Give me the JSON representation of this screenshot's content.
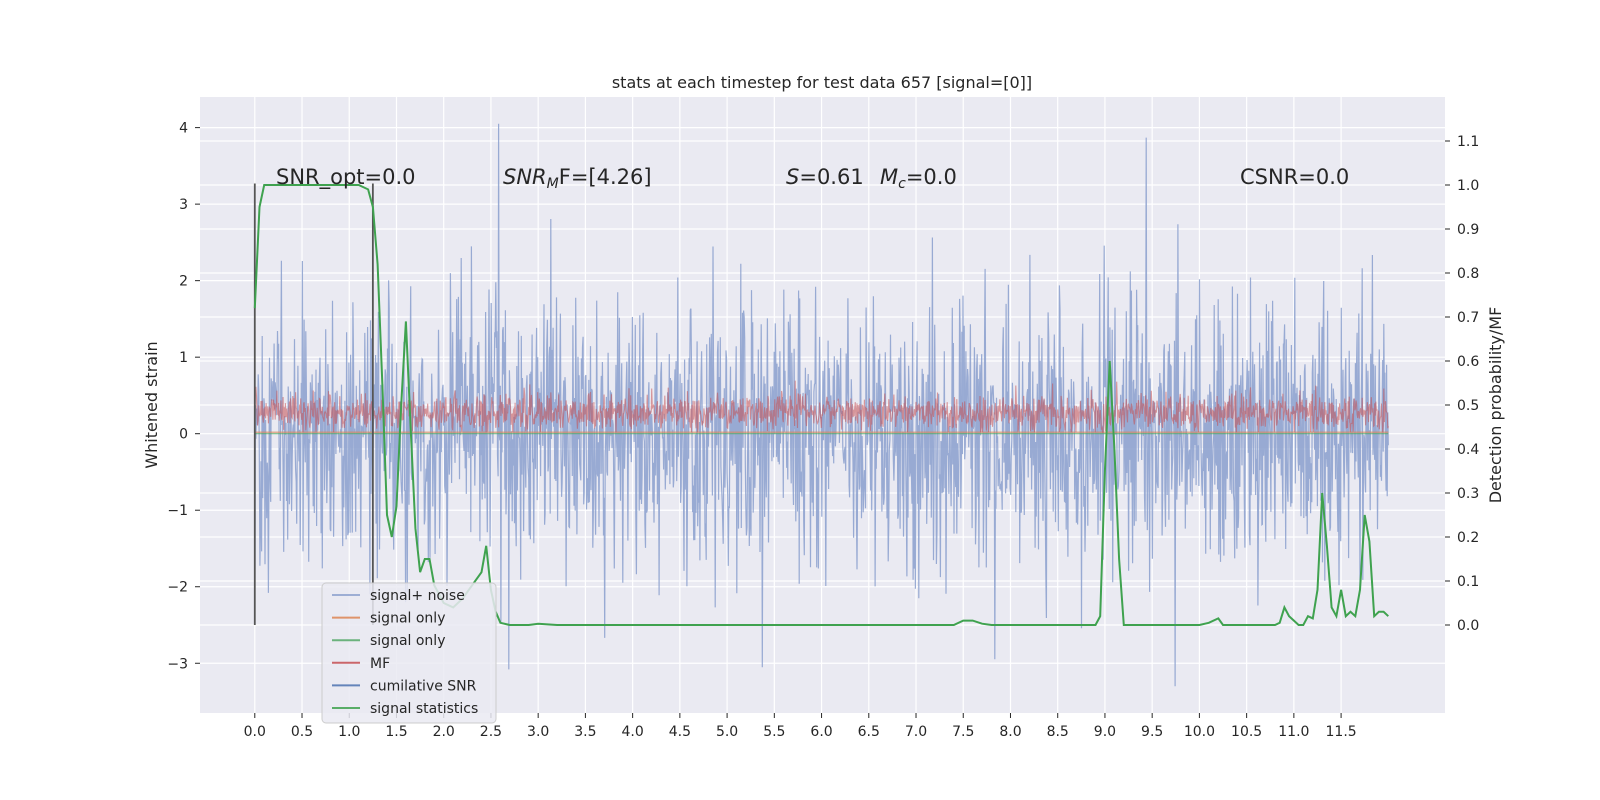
{
  "chart_data": {
    "type": "line",
    "title": "stats at each timestep for test data 657 [signal=[0]]",
    "xlabel": "",
    "ylabel": "Whitened strain",
    "ylabel_right": "Detection probability/MF",
    "xlim": [
      -0.58,
      12.6
    ],
    "ylim": [
      -3.65,
      4.4
    ],
    "ylim_right": [
      -0.2,
      1.2
    ],
    "x_ticks": [
      "0.0",
      "0.5",
      "1.0",
      "1.5",
      "2.0",
      "2.5",
      "3.0",
      "3.5",
      "4.0",
      "4.5",
      "5.0",
      "5.5",
      "6.0",
      "6.5",
      "7.0",
      "7.5",
      "8.0",
      "8.5",
      "9.0",
      "9.5",
      "10.0",
      "10.5",
      "11.0",
      "11.5"
    ],
    "y_ticks": [
      "−3",
      "−2",
      "−1",
      "0",
      "1",
      "2",
      "3",
      "4"
    ],
    "y_ticks_right": [
      "0.0",
      "0.1",
      "0.2",
      "0.3",
      "0.4",
      "0.5",
      "0.6",
      "0.7",
      "0.8",
      "0.9",
      "1.0",
      "1.1"
    ],
    "grid": true,
    "legend_position": "lower-left",
    "colors": {
      "signal_noise": "#8fa3cf",
      "signal_only_orange": "#dd8452",
      "signal_only_green": "#55a868",
      "mf": "#c44e52",
      "cumulative_snr": "#4c72b0",
      "signal_statistics": "#3fa24f",
      "marker_lines": "#555555",
      "plot_bg": "#eaeaf2"
    },
    "annotations": {
      "snr_opt": "SNR_opt=0.0",
      "snr_mf_base": "SNR",
      "snr_mf_sub": "M",
      "snr_mf_rest": "F=[4.26]",
      "s_label": "S",
      "s_value": "=0.61",
      "mc_label": "M",
      "mc_sub": "c",
      "mc_value": "=0.0",
      "csnr": "CSNR=0.0"
    },
    "legend": [
      {
        "label": "signal+ noise",
        "color_key": "signal_noise"
      },
      {
        "label": "signal only",
        "color_key": "signal_only_orange"
      },
      {
        "label": "signal only",
        "color_key": "signal_only_green"
      },
      {
        "label": "MF",
        "color_key": "mf"
      },
      {
        "label": "cumilative SNR",
        "color_key": "cumulative_snr"
      },
      {
        "label": "signal statistics",
        "color_key": "signal_statistics"
      }
    ],
    "vertical_markers_x": [
      0.0,
      1.25
    ],
    "series": [
      {
        "name": "signal statistics",
        "axis": "right",
        "x": [
          0.0,
          0.05,
          0.1,
          0.2,
          0.4,
          0.6,
          0.8,
          1.0,
          1.1,
          1.2,
          1.25,
          1.3,
          1.35,
          1.4,
          1.45,
          1.5,
          1.55,
          1.6,
          1.65,
          1.7,
          1.75,
          1.8,
          1.85,
          1.9,
          1.95,
          2.0,
          2.1,
          2.2,
          2.3,
          2.4,
          2.45,
          2.5,
          2.55,
          2.6,
          2.7,
          2.8,
          2.9,
          3.0,
          3.2,
          3.5,
          4.0,
          5.0,
          6.0,
          7.0,
          7.4,
          7.5,
          7.6,
          7.7,
          7.8,
          8.0,
          8.5,
          8.9,
          8.95,
          9.0,
          9.05,
          9.1,
          9.15,
          9.2,
          9.3,
          9.5,
          10.0,
          10.1,
          10.2,
          10.25,
          10.3,
          10.5,
          10.8,
          10.85,
          10.9,
          10.95,
          11.0,
          11.05,
          11.1,
          11.15,
          11.2,
          11.25,
          11.3,
          11.35,
          11.4,
          11.45,
          11.5,
          11.55,
          11.6,
          11.65,
          11.7,
          11.75,
          11.8,
          11.85,
          11.9,
          11.95,
          12.0
        ],
        "values": [
          0.72,
          0.95,
          1.0,
          1.0,
          1.0,
          1.0,
          1.0,
          1.0,
          1.0,
          0.99,
          0.95,
          0.82,
          0.55,
          0.25,
          0.2,
          0.27,
          0.5,
          0.69,
          0.45,
          0.22,
          0.12,
          0.15,
          0.15,
          0.09,
          0.07,
          0.05,
          0.04,
          0.06,
          0.09,
          0.12,
          0.18,
          0.08,
          0.03,
          0.005,
          0.0,
          0.0,
          0.0,
          0.003,
          0.0,
          0.0,
          0.0,
          0.0,
          0.0,
          0.0,
          0.0,
          0.01,
          0.01,
          0.003,
          0.0,
          0.0,
          0.0,
          0.0,
          0.02,
          0.35,
          0.6,
          0.4,
          0.15,
          0.0,
          0.0,
          0.0,
          0.0,
          0.005,
          0.015,
          0.0,
          0.0,
          0.0,
          0.0,
          0.005,
          0.04,
          0.02,
          0.01,
          0.0,
          0.0,
          0.02,
          0.015,
          0.08,
          0.3,
          0.18,
          0.04,
          0.02,
          0.08,
          0.02,
          0.03,
          0.02,
          0.08,
          0.25,
          0.19,
          0.02,
          0.03,
          0.03,
          0.02
        ]
      }
    ]
  }
}
